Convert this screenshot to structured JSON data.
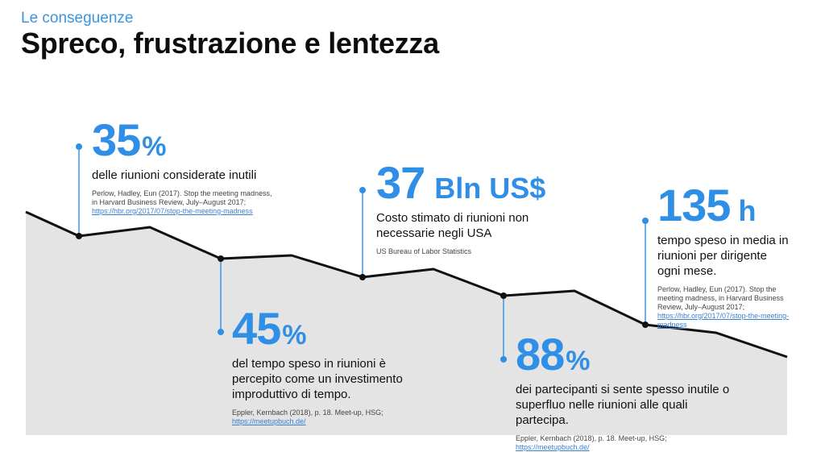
{
  "header": {
    "subtitle": "Le conseguenze",
    "title": "Spreco, frustrazione e lentezza"
  },
  "colors": {
    "accent": "#2f8ee5",
    "area": "#e4e4e4",
    "line": "#111111"
  },
  "stats": [
    {
      "value": "35",
      "unit": "%",
      "description": "delle riunioni considerate inutili",
      "source": "Perlow, Hadley, Eun (2017). Stop the meeting madness, in Harvard Business Review, July–August 2017;",
      "link": "https://hbr.org/2017/07/stop-the-meeting-madness"
    },
    {
      "value": "45",
      "unit": "%",
      "description": "del tempo speso in riunioni è percepito come un investimento improduttivo di tempo.",
      "source": "Eppler, Kernbach (2018), p. 18. Meet-up, HSG;",
      "link": "https://meetupbuch.de/"
    },
    {
      "value": "37",
      "unit": "Bln US$",
      "description": "Costo stimato di riunioni non necessarie negli USA",
      "source": "US Bureau of Labor Statistics",
      "link": ""
    },
    {
      "value": "88",
      "unit": "%",
      "description": "dei partecipanti si sente spesso inutile o superfluo nelle riunioni alle quali partecipa.",
      "source": "Eppler, Kernbach (2018), p. 18. Meet-up, HSG;",
      "link": "https://meetupbuch.de/"
    },
    {
      "value": "135",
      "unit": "h",
      "description": "tempo speso in media in riunioni per dirigente ogni mese.",
      "source": "Perlow, Hadley, Eun (2017). Stop the meeting madness, in Harvard Business Review, July–August 2017;",
      "link": "https://hbr.org/2017/07/stop-the-meeting-madness"
    }
  ]
}
